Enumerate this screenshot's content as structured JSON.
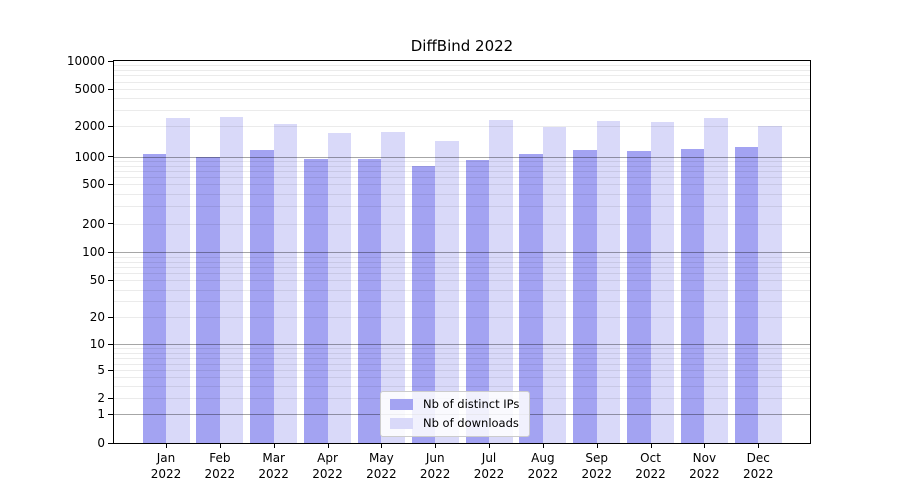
{
  "chart_data": {
    "type": "bar",
    "title": "DiffBind 2022",
    "yscale": "symlog",
    "ylim": [
      0,
      10000
    ],
    "xlabel": "",
    "ylabel": "",
    "grid": "both",
    "legend_position": "lower center",
    "categories": [
      "Jan 2022",
      "Feb 2022",
      "Mar 2022",
      "Apr 2022",
      "May 2022",
      "Jun 2022",
      "Jul 2022",
      "Aug 2022",
      "Sep 2022",
      "Oct 2022",
      "Nov 2022",
      "Dec 2022"
    ],
    "y_ticks": [
      0,
      1,
      2,
      5,
      10,
      20,
      50,
      100,
      200,
      500,
      1000,
      2000,
      5000,
      10000
    ],
    "series": [
      {
        "name": "Nb of distinct IPs",
        "color": "#a3a3f2",
        "values": [
          1050,
          1000,
          1170,
          950,
          930,
          800,
          910,
          1050,
          1170,
          1130,
          1190,
          1250
        ]
      },
      {
        "name": "Nb of downloads",
        "color": "#d9d9f9",
        "values": [
          2430,
          2510,
          2100,
          1690,
          1750,
          1410,
          2310,
          1960,
          2260,
          2200,
          2460,
          1980
        ]
      }
    ]
  }
}
